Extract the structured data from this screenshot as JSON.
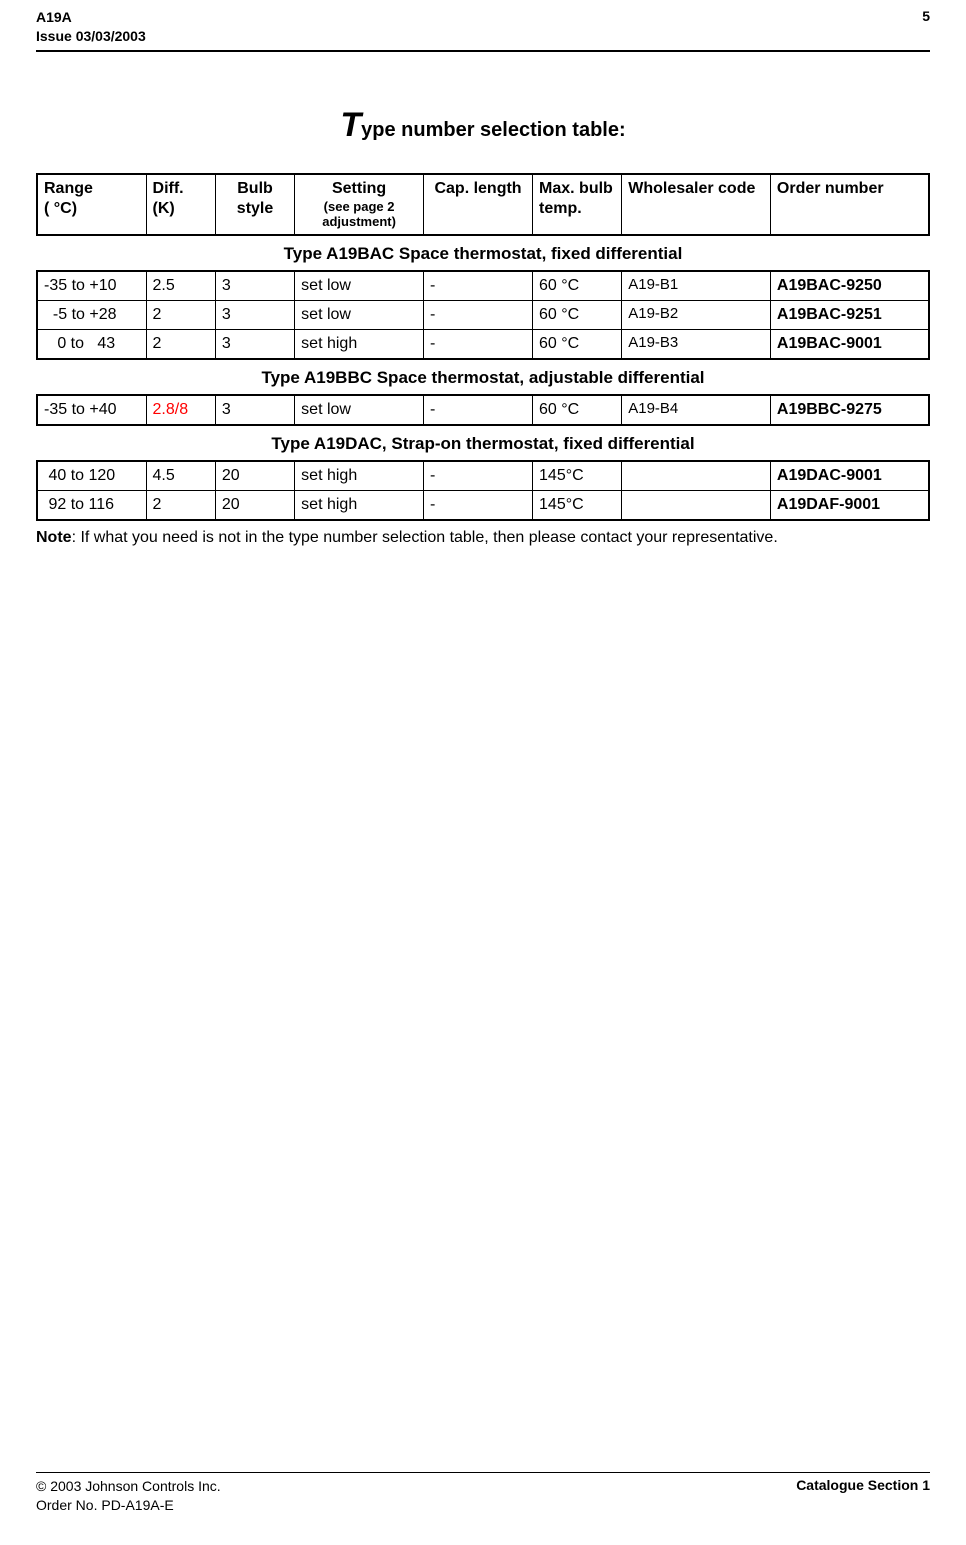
{
  "header": {
    "doc_id": "A19A",
    "issue_line": "Issue 03/03/2003",
    "page_num": "5"
  },
  "title": {
    "big_letter": "T",
    "rest": "ype number selection table:"
  },
  "columns": {
    "range": "Range\n( °C)",
    "diff": "Diff.\n(K)",
    "bulb": "Bulb style",
    "setting": "Setting",
    "setting_sub": "(see page 2 adjustment)",
    "cap": "Cap. length",
    "max": "Max. bulb temp.",
    "whole": "Wholesaler code",
    "order": "Order number"
  },
  "col_widths": [
    "11%",
    "7%",
    "8%",
    "13%",
    "11%",
    "9%",
    "15%",
    "16%"
  ],
  "sections": [
    {
      "title": "Type A19BAC Space thermostat, fixed differential",
      "rows": [
        {
          "range": "-35 to +10",
          "diff": "2.5",
          "diff_red": false,
          "bulb": "3",
          "setting": "set low",
          "cap": "-",
          "max": "60 °C",
          "whole": "A19-B1",
          "order": "A19BAC-9250"
        },
        {
          "range": "  -5 to +28",
          "diff": "2",
          "diff_red": false,
          "bulb": "3",
          "setting": "set low",
          "cap": "-",
          "max": "60 °C",
          "whole": "A19-B2",
          "order": "A19BAC-9251"
        },
        {
          "range": "   0 to   43",
          "diff": "2",
          "diff_red": false,
          "bulb": "3",
          "setting": "set high",
          "cap": "-",
          "max": "60 °C",
          "whole": "A19-B3",
          "order": "A19BAC-9001"
        }
      ]
    },
    {
      "title": "Type A19BBC Space thermostat, adjustable differential",
      "rows": [
        {
          "range": "-35 to +40",
          "diff": "2.8/8",
          "diff_red": true,
          "bulb": "3",
          "setting": "set low",
          "cap": "-",
          "max": "60 °C",
          "whole": "A19-B4",
          "order": "A19BBC-9275"
        }
      ]
    },
    {
      "title": "Type A19DAC, Strap-on thermostat, fixed differential",
      "rows": [
        {
          "range": " 40 to 120",
          "diff": "4.5",
          "diff_red": false,
          "bulb": "20",
          "setting": "set high",
          "cap": "-",
          "max": "145°C",
          "whole": "",
          "order": "A19DAC-9001"
        },
        {
          "range": " 92 to 116",
          "diff": "2",
          "diff_red": false,
          "bulb": "20",
          "setting": "set high",
          "cap": "-",
          "max": "145°C",
          "whole": "",
          "order": "A19DAF-9001"
        }
      ]
    }
  ],
  "note_bold": "Note",
  "note_rest": ": If what you need is not in the type number selection table, then please contact your representative.",
  "footer": {
    "copyright": "© 2003 Johnson Controls Inc.",
    "order_no": "Order No. PD-A19A-E",
    "section": "Catalogue Section 1"
  }
}
